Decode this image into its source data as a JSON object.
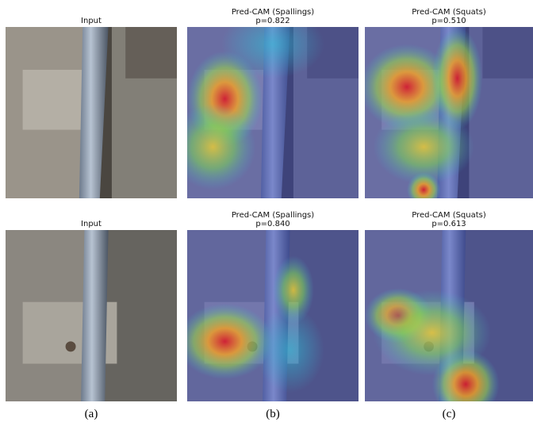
{
  "figure": {
    "rows": [
      {
        "panels": [
          {
            "title": "Input"
          },
          {
            "title": "Pred-CAM (Spallings)",
            "subtitle": "p=0.822"
          },
          {
            "title": "Pred-CAM (Squats)",
            "subtitle": "p=0.510"
          }
        ]
      },
      {
        "panels": [
          {
            "title": "Input"
          },
          {
            "title": "Pred-CAM (Spallings)",
            "subtitle": "p=0.840"
          },
          {
            "title": "Pred-CAM (Squats)",
            "subtitle": "p=0.613"
          }
        ]
      }
    ],
    "captions": [
      "(a)",
      "(b)",
      "(c)"
    ]
  }
}
